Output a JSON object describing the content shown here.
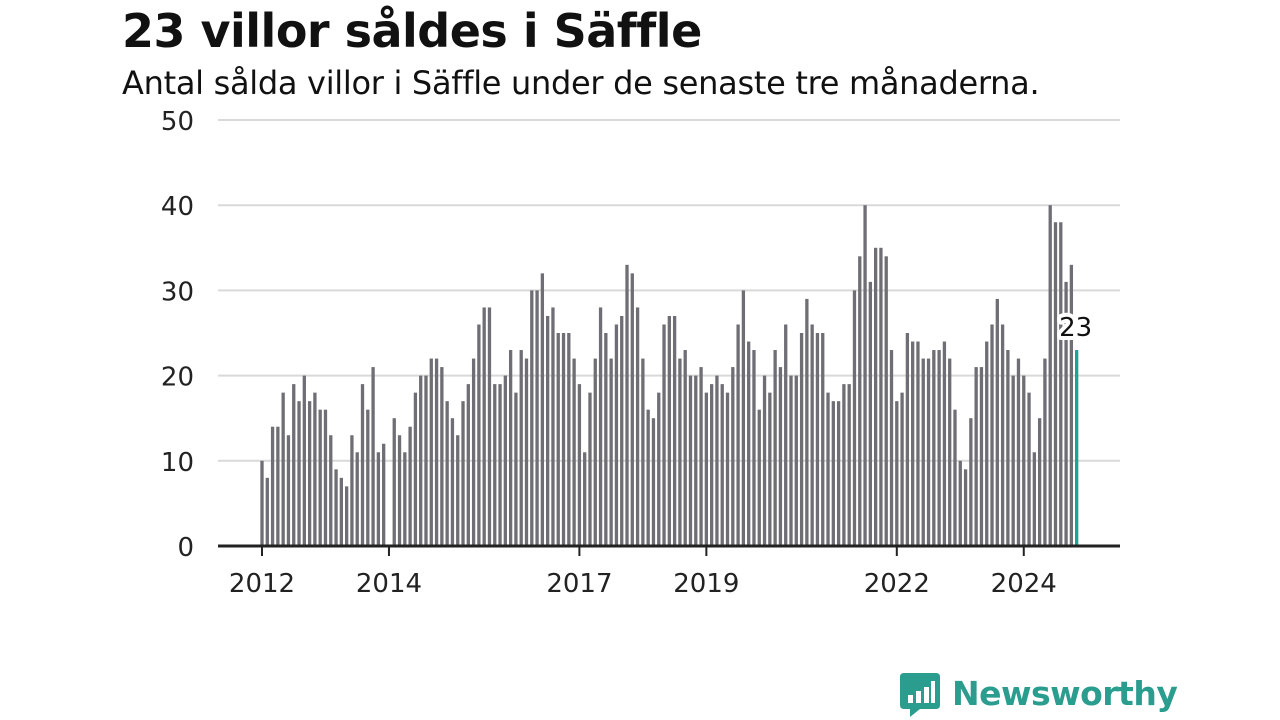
{
  "header": {
    "title": "23 villor såldes i Säffle",
    "subtitle": "Antal sålda villor i Säffle under de senaste tre månaderna."
  },
  "brand": {
    "name": "Newsworthy",
    "color": "#2a9d8f",
    "icon": "bar-chart-speech-bubble-icon"
  },
  "colors": {
    "bar": "#6e6e74",
    "highlight": "#1aa39a",
    "grid": "#d9d9d9",
    "axis": "#222222"
  },
  "chart_data": {
    "type": "bar",
    "title": "23 villor såldes i Säffle",
    "subtitle": "Antal sålda villor i Säffle under de senaste tre månaderna.",
    "xlabel": "",
    "ylabel": "",
    "ylim": [
      0,
      50
    ],
    "yticks": [
      0,
      10,
      20,
      30,
      40,
      50
    ],
    "xtick_labels": [
      {
        "label": "2012",
        "bar_index": 0
      },
      {
        "label": "2014",
        "bar_index": 24
      },
      {
        "label": "2017",
        "bar_index": 60
      },
      {
        "label": "2019",
        "bar_index": 84
      },
      {
        "label": "2022",
        "bar_index": 120
      },
      {
        "label": "2024",
        "bar_index": 144
      }
    ],
    "grid": true,
    "legend": "none",
    "values": [
      10,
      8,
      14,
      14,
      18,
      13,
      19,
      17,
      20,
      17,
      18,
      16,
      16,
      13,
      9,
      8,
      7,
      13,
      11,
      19,
      16,
      21,
      11,
      12,
      0,
      15,
      13,
      11,
      14,
      18,
      20,
      20,
      22,
      22,
      21,
      17,
      15,
      13,
      17,
      19,
      22,
      26,
      28,
      28,
      19,
      19,
      20,
      23,
      18,
      23,
      22,
      30,
      30,
      32,
      27,
      28,
      25,
      25,
      25,
      22,
      19,
      11,
      18,
      22,
      28,
      25,
      22,
      26,
      27,
      33,
      32,
      28,
      22,
      16,
      15,
      18,
      26,
      27,
      27,
      22,
      23,
      20,
      20,
      21,
      18,
      19,
      20,
      19,
      18,
      21,
      26,
      30,
      24,
      23,
      16,
      20,
      18,
      23,
      21,
      26,
      20,
      20,
      25,
      29,
      26,
      25,
      25,
      18,
      17,
      17,
      19,
      19,
      30,
      34,
      40,
      31,
      35,
      35,
      34,
      23,
      17,
      18,
      25,
      24,
      24,
      22,
      22,
      23,
      23,
      24,
      22,
      16,
      10,
      9,
      15,
      21,
      21,
      24,
      26,
      29,
      26,
      23,
      20,
      22,
      20,
      18,
      11,
      15,
      22,
      40,
      38,
      38,
      31,
      33,
      23
    ],
    "highlight_last": true,
    "last_value_label": "23"
  }
}
